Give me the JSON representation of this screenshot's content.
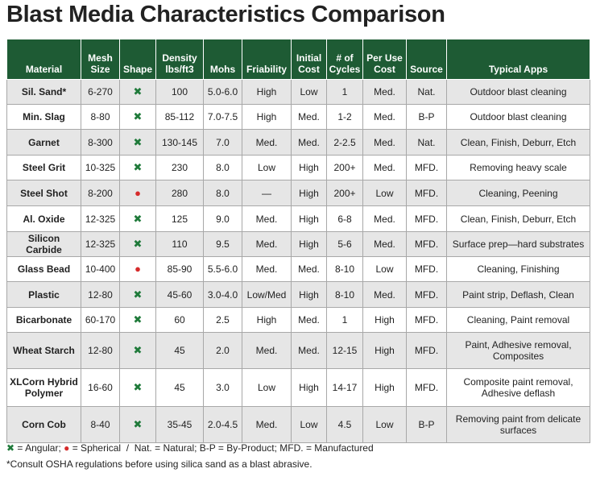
{
  "header": {
    "title": "Blast Media Characteristics Comparison"
  },
  "shape_colors": {
    "✖": "#1f7a3a",
    "●": "#d62b2b"
  },
  "table": {
    "columns": [
      "Material",
      "Mesh Size",
      "Shape",
      "Density lbs/ft3",
      "Mohs",
      "Friability",
      "Initial Cost",
      "# of Cycles",
      "Per Use Cost",
      "Source",
      "Typical Apps"
    ],
    "rows": [
      [
        "Sil. Sand*",
        "6-270",
        "✖",
        "100",
        "5.0-6.0",
        "High",
        "Low",
        "1",
        "Med.",
        "Nat.",
        "Outdoor blast cleaning"
      ],
      [
        "Min. Slag",
        "8-80",
        "✖",
        "85-112",
        "7.0-7.5",
        "High",
        "Med.",
        "1-2",
        "Med.",
        "B-P",
        "Outdoor blast cleaning"
      ],
      [
        "Garnet",
        "8-300",
        "✖",
        "130-145",
        "7.0",
        "Med.",
        "Med.",
        "2-2.5",
        "Med.",
        "Nat.",
        "Clean, Finish, Deburr, Etch"
      ],
      [
        "Steel Grit",
        "10-325",
        "✖",
        "230",
        "8.0",
        "Low",
        "High",
        "200+",
        "Med.",
        "MFD.",
        "Removing heavy scale"
      ],
      [
        "Steel Shot",
        "8-200",
        "●",
        "280",
        "8.0",
        "—",
        "High",
        "200+",
        "Low",
        "MFD.",
        "Cleaning, Peening"
      ],
      [
        "Al. Oxide",
        "12-325",
        "✖",
        "125",
        "9.0",
        "Med.",
        "High",
        "6-8",
        "Med.",
        "MFD.",
        "Clean, Finish, Deburr, Etch"
      ],
      [
        "Silicon Carbide",
        "12-325",
        "✖",
        "110",
        "9.5",
        "Med.",
        "High",
        "5-6",
        "Med.",
        "MFD.",
        "Surface prep—hard substrates"
      ],
      [
        "Glass Bead",
        "10-400",
        "●",
        "85-90",
        "5.5-6.0",
        "Med.",
        "Med.",
        "8-10",
        "Low",
        "MFD.",
        "Cleaning, Finishing"
      ],
      [
        "Plastic",
        "12-80",
        "✖",
        "45-60",
        "3.0-4.0",
        "Low/Med",
        "High",
        "8-10",
        "Med.",
        "MFD.",
        "Paint strip, Deflash, Clean"
      ],
      [
        "Bicarbonate",
        "60-170",
        "✖",
        "60",
        "2.5",
        "High",
        "Med.",
        "1",
        "High",
        "MFD.",
        "Cleaning, Paint removal"
      ],
      [
        "Wheat Starch",
        "12-80",
        "✖",
        "45",
        "2.0",
        "Med.",
        "Med.",
        "12-15",
        "High",
        "MFD.",
        "Paint, Adhesive removal, Composites"
      ],
      [
        "XLCorn Hybrid Polymer",
        "16-60",
        "✖",
        "45",
        "3.0",
        "Low",
        "High",
        "14-17",
        "High",
        "MFD.",
        "Composite paint removal, Adhesive deflash"
      ],
      [
        "Corn Cob",
        "8-40",
        "✖",
        "35-45",
        "2.0-4.5",
        "Med.",
        "Low",
        "4.5",
        "Low",
        "B-P",
        "Removing paint from delicate surfaces"
      ]
    ]
  },
  "legend": {
    "angular_icon": "✖",
    "angular": "= Angular;",
    "spherical_icon": "●",
    "spherical": "= Spherical  /  Nat. = Natural; B-P = By-Product; MFD. = Manufactured"
  },
  "footnote": "*Consult OSHA regulations before using silica sand as a blast abrasive."
}
